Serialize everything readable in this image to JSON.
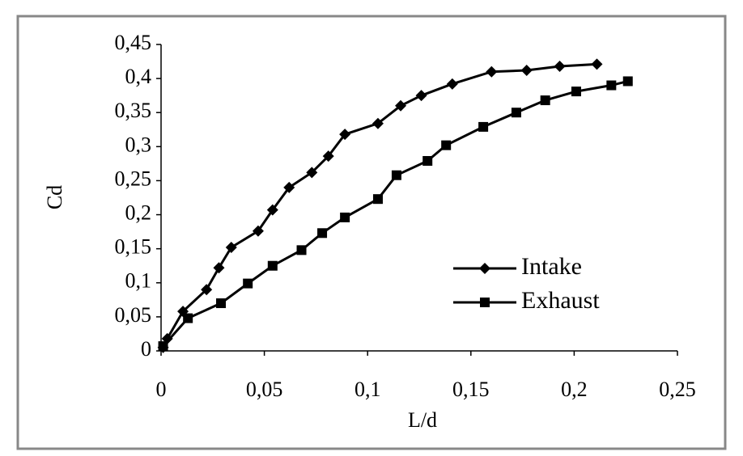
{
  "chart_data": {
    "type": "line",
    "x_label": "L/d",
    "y_label": "Cd",
    "xlim": [
      0,
      0.25
    ],
    "ylim": [
      0,
      0.45
    ],
    "xticks": [
      0,
      {
        "value": 0.05,
        "label": "0,05"
      },
      {
        "value": 0.1,
        "label": "0,1"
      },
      {
        "value": 0.15,
        "label": "0,15"
      },
      {
        "value": 0.2,
        "label": "0,2"
      },
      {
        "value": 0.25,
        "label": "0,25"
      }
    ],
    "yticks": [
      0,
      {
        "value": 0.05,
        "label": "0,05"
      },
      {
        "value": 0.1,
        "label": "0,1"
      },
      {
        "value": 0.15,
        "label": "0,15"
      },
      {
        "value": 0.2,
        "label": "0,2"
      },
      {
        "value": 0.25,
        "label": "0,25"
      },
      {
        "value": 0.3,
        "label": "0,3"
      },
      {
        "value": 0.35,
        "label": "0,35"
      },
      {
        "value": 0.4,
        "label": "0,4"
      },
      {
        "value": 0.45,
        "label": "0,45"
      }
    ],
    "grid": false,
    "legend": "lower right",
    "series": [
      {
        "name": "Intake",
        "color": "#000000",
        "marker": "diamond",
        "x": [
          0.001,
          0.003,
          0.0106,
          0.022,
          0.028,
          0.034,
          0.047,
          0.054,
          0.062,
          0.073,
          0.081,
          0.089,
          0.105,
          0.116,
          0.126,
          0.141,
          0.16,
          0.177,
          0.193,
          0.211
        ],
        "values": [
          0.005,
          0.018,
          0.058,
          0.09,
          0.122,
          0.152,
          0.176,
          0.207,
          0.24,
          0.262,
          0.286,
          0.318,
          0.334,
          0.36,
          0.375,
          0.392,
          0.41,
          0.412,
          0.418,
          0.421
        ]
      },
      {
        "name": "Exhaust",
        "color": "#000000",
        "marker": "square",
        "x": [
          0.001,
          0.013,
          0.029,
          0.042,
          0.054,
          0.068,
          0.078,
          0.089,
          0.105,
          0.114,
          0.129,
          0.138,
          0.156,
          0.172,
          0.186,
          0.201,
          0.218,
          0.226
        ],
        "values": [
          0.007,
          0.048,
          0.07,
          0.099,
          0.125,
          0.148,
          0.173,
          0.196,
          0.223,
          0.258,
          0.279,
          0.302,
          0.329,
          0.35,
          0.368,
          0.381,
          0.39,
          0.396
        ]
      }
    ]
  }
}
